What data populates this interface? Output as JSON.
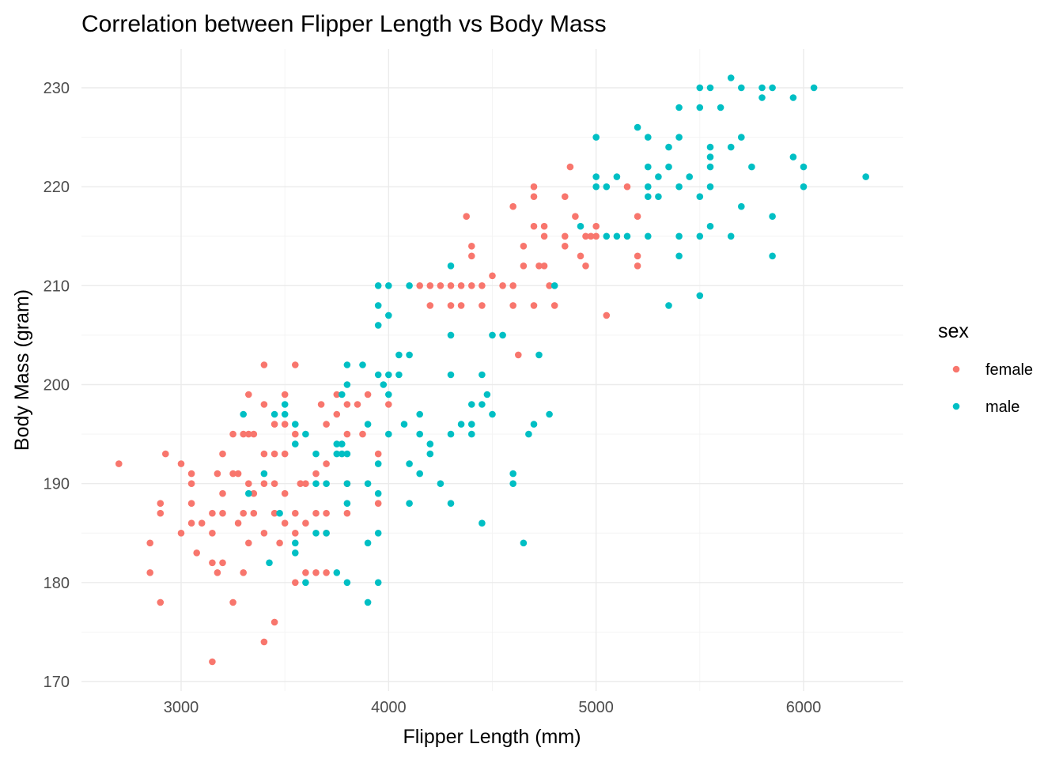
{
  "chart_data": {
    "type": "scatter",
    "title": "Correlation between Flipper Length vs Body Mass",
    "xlabel": "Flipper Length (mm)",
    "ylabel": "Body Mass (gram)",
    "xlim": [
      2500,
      6500
    ],
    "ylim": [
      169,
      234
    ],
    "x_ticks": [
      3000,
      4000,
      5000,
      6000
    ],
    "y_ticks": [
      170,
      180,
      190,
      200,
      210,
      220,
      230
    ],
    "grid": true,
    "legend": {
      "title": "sex",
      "position": "right"
    },
    "series": [
      {
        "name": "female",
        "color": "#F8766D",
        "points": [
          [
            2700,
            192
          ],
          [
            2850,
            184
          ],
          [
            2850,
            181
          ],
          [
            2900,
            188
          ],
          [
            2900,
            187
          ],
          [
            2900,
            178
          ],
          [
            2925,
            193
          ],
          [
            3000,
            192
          ],
          [
            3000,
            185
          ],
          [
            3050,
            191
          ],
          [
            3050,
            190
          ],
          [
            3050,
            188
          ],
          [
            3050,
            186
          ],
          [
            3075,
            183
          ],
          [
            3100,
            186
          ],
          [
            3150,
            187
          ],
          [
            3150,
            185
          ],
          [
            3150,
            182
          ],
          [
            3150,
            172
          ],
          [
            3175,
            191
          ],
          [
            3175,
            181
          ],
          [
            3200,
            193
          ],
          [
            3200,
            189
          ],
          [
            3200,
            187
          ],
          [
            3200,
            182
          ],
          [
            3250,
            195
          ],
          [
            3250,
            191
          ],
          [
            3250,
            178
          ],
          [
            3275,
            191
          ],
          [
            3275,
            186
          ],
          [
            3300,
            195
          ],
          [
            3300,
            187
          ],
          [
            3300,
            181
          ],
          [
            3325,
            195
          ],
          [
            3325,
            199
          ],
          [
            3325,
            184
          ],
          [
            3325,
            190
          ],
          [
            3350,
            195
          ],
          [
            3350,
            189
          ],
          [
            3350,
            187
          ],
          [
            3400,
            202
          ],
          [
            3400,
            198
          ],
          [
            3400,
            193
          ],
          [
            3400,
            190
          ],
          [
            3400,
            185
          ],
          [
            3400,
            174
          ],
          [
            3450,
            196
          ],
          [
            3450,
            193
          ],
          [
            3450,
            190
          ],
          [
            3450,
            187
          ],
          [
            3450,
            176
          ],
          [
            3475,
            184
          ],
          [
            3500,
            199
          ],
          [
            3500,
            196
          ],
          [
            3500,
            193
          ],
          [
            3500,
            189
          ],
          [
            3500,
            186
          ],
          [
            3550,
            202
          ],
          [
            3550,
            195
          ],
          [
            3550,
            187
          ],
          [
            3550,
            185
          ],
          [
            3550,
            180
          ],
          [
            3575,
            190
          ],
          [
            3600,
            190
          ],
          [
            3600,
            181
          ],
          [
            3600,
            186
          ],
          [
            3650,
            191
          ],
          [
            3650,
            187
          ],
          [
            3650,
            181
          ],
          [
            3675,
            198
          ],
          [
            3700,
            196
          ],
          [
            3700,
            192
          ],
          [
            3700,
            187
          ],
          [
            3700,
            185
          ],
          [
            3700,
            181
          ],
          [
            3750,
            197
          ],
          [
            3750,
            199
          ],
          [
            3800,
            198
          ],
          [
            3800,
            195
          ],
          [
            3800,
            190
          ],
          [
            3800,
            187
          ],
          [
            3850,
            198
          ],
          [
            3875,
            195
          ],
          [
            3900,
            199
          ],
          [
            3950,
            193
          ],
          [
            3950,
            188
          ],
          [
            4000,
            198
          ],
          [
            4150,
            210
          ],
          [
            4200,
            210
          ],
          [
            4200,
            208
          ],
          [
            4250,
            210
          ],
          [
            4300,
            210
          ],
          [
            4300,
            208
          ],
          [
            4350,
            210
          ],
          [
            4350,
            208
          ],
          [
            4375,
            217
          ],
          [
            4400,
            214
          ],
          [
            4400,
            213
          ],
          [
            4400,
            210
          ],
          [
            4450,
            210
          ],
          [
            4450,
            208
          ],
          [
            4500,
            211
          ],
          [
            4550,
            210
          ],
          [
            4600,
            218
          ],
          [
            4600,
            210
          ],
          [
            4600,
            208
          ],
          [
            4625,
            203
          ],
          [
            4650,
            214
          ],
          [
            4650,
            212
          ],
          [
            4700,
            220
          ],
          [
            4700,
            219
          ],
          [
            4700,
            216
          ],
          [
            4700,
            208
          ],
          [
            4725,
            212
          ],
          [
            4750,
            216
          ],
          [
            4750,
            215
          ],
          [
            4750,
            212
          ],
          [
            4775,
            210
          ],
          [
            4800,
            208
          ],
          [
            4850,
            219
          ],
          [
            4850,
            215
          ],
          [
            4850,
            214
          ],
          [
            4875,
            222
          ],
          [
            4900,
            217
          ],
          [
            4925,
            213
          ],
          [
            4950,
            215
          ],
          [
            4950,
            212
          ],
          [
            4975,
            215
          ],
          [
            5000,
            216
          ],
          [
            5000,
            215
          ],
          [
            5050,
            207
          ],
          [
            5150,
            220
          ],
          [
            5200,
            217
          ],
          [
            5200,
            213
          ],
          [
            5200,
            212
          ]
        ]
      },
      {
        "name": "male",
        "color": "#00BFC4",
        "points": [
          [
            3300,
            197
          ],
          [
            3325,
            189
          ],
          [
            3400,
            191
          ],
          [
            3425,
            182
          ],
          [
            3450,
            197
          ],
          [
            3475,
            187
          ],
          [
            3500,
            198
          ],
          [
            3500,
            197
          ],
          [
            3550,
            196
          ],
          [
            3550,
            194
          ],
          [
            3550,
            184
          ],
          [
            3550,
            183
          ],
          [
            3600,
            195
          ],
          [
            3600,
            180
          ],
          [
            3650,
            193
          ],
          [
            3650,
            190
          ],
          [
            3650,
            185
          ],
          [
            3700,
            190
          ],
          [
            3700,
            185
          ],
          [
            3750,
            194
          ],
          [
            3750,
            193
          ],
          [
            3750,
            181
          ],
          [
            3775,
            199
          ],
          [
            3775,
            194
          ],
          [
            3775,
            193
          ],
          [
            3800,
            202
          ],
          [
            3800,
            200
          ],
          [
            3800,
            193
          ],
          [
            3800,
            190
          ],
          [
            3800,
            188
          ],
          [
            3800,
            180
          ],
          [
            3875,
            202
          ],
          [
            3900,
            196
          ],
          [
            3900,
            190
          ],
          [
            3900,
            184
          ],
          [
            3900,
            178
          ],
          [
            3950,
            210
          ],
          [
            3950,
            208
          ],
          [
            3950,
            206
          ],
          [
            3950,
            201
          ],
          [
            3950,
            192
          ],
          [
            3950,
            189
          ],
          [
            3950,
            185
          ],
          [
            3950,
            180
          ],
          [
            3975,
            200
          ],
          [
            4000,
            210
          ],
          [
            4000,
            207
          ],
          [
            4000,
            201
          ],
          [
            4000,
            199
          ],
          [
            4000,
            195
          ],
          [
            4050,
            203
          ],
          [
            4050,
            201
          ],
          [
            4075,
            196
          ],
          [
            4100,
            210
          ],
          [
            4100,
            203
          ],
          [
            4100,
            192
          ],
          [
            4100,
            188
          ],
          [
            4150,
            197
          ],
          [
            4150,
            195
          ],
          [
            4150,
            191
          ],
          [
            4200,
            194
          ],
          [
            4200,
            193
          ],
          [
            4250,
            190
          ],
          [
            4300,
            212
          ],
          [
            4300,
            205
          ],
          [
            4300,
            201
          ],
          [
            4300,
            195
          ],
          [
            4300,
            188
          ],
          [
            4350,
            196
          ],
          [
            4400,
            198
          ],
          [
            4400,
            196
          ],
          [
            4400,
            195
          ],
          [
            4450,
            201
          ],
          [
            4450,
            198
          ],
          [
            4450,
            186
          ],
          [
            4475,
            199
          ],
          [
            4500,
            205
          ],
          [
            4500,
            197
          ],
          [
            4550,
            205
          ],
          [
            4600,
            191
          ],
          [
            4600,
            190
          ],
          [
            4650,
            184
          ],
          [
            4675,
            195
          ],
          [
            4700,
            196
          ],
          [
            4725,
            203
          ],
          [
            4775,
            197
          ],
          [
            4800,
            210
          ],
          [
            4925,
            216
          ],
          [
            5000,
            225
          ],
          [
            5000,
            221
          ],
          [
            5000,
            220
          ],
          [
            5050,
            215
          ],
          [
            5050,
            220
          ],
          [
            5100,
            221
          ],
          [
            5100,
            215
          ],
          [
            5150,
            215
          ],
          [
            5200,
            226
          ],
          [
            5250,
            225
          ],
          [
            5250,
            222
          ],
          [
            5250,
            220
          ],
          [
            5250,
            219
          ],
          [
            5250,
            215
          ],
          [
            5300,
            219
          ],
          [
            5300,
            221
          ],
          [
            5350,
            224
          ],
          [
            5350,
            222
          ],
          [
            5350,
            208
          ],
          [
            5400,
            228
          ],
          [
            5400,
            225
          ],
          [
            5400,
            220
          ],
          [
            5400,
            215
          ],
          [
            5400,
            213
          ],
          [
            5450,
            221
          ],
          [
            5500,
            230
          ],
          [
            5500,
            228
          ],
          [
            5500,
            219
          ],
          [
            5500,
            215
          ],
          [
            5500,
            209
          ],
          [
            5550,
            230
          ],
          [
            5550,
            224
          ],
          [
            5550,
            223
          ],
          [
            5550,
            222
          ],
          [
            5550,
            220
          ],
          [
            5550,
            216
          ],
          [
            5600,
            228
          ],
          [
            5650,
            231
          ],
          [
            5650,
            224
          ],
          [
            5650,
            215
          ],
          [
            5700,
            230
          ],
          [
            5700,
            225
          ],
          [
            5700,
            218
          ],
          [
            5750,
            222
          ],
          [
            5800,
            230
          ],
          [
            5800,
            229
          ],
          [
            5850,
            230
          ],
          [
            5850,
            217
          ],
          [
            5850,
            213
          ],
          [
            5950,
            229
          ],
          [
            5950,
            223
          ],
          [
            6000,
            222
          ],
          [
            6000,
            220
          ],
          [
            6050,
            230
          ],
          [
            6300,
            221
          ]
        ]
      }
    ]
  }
}
